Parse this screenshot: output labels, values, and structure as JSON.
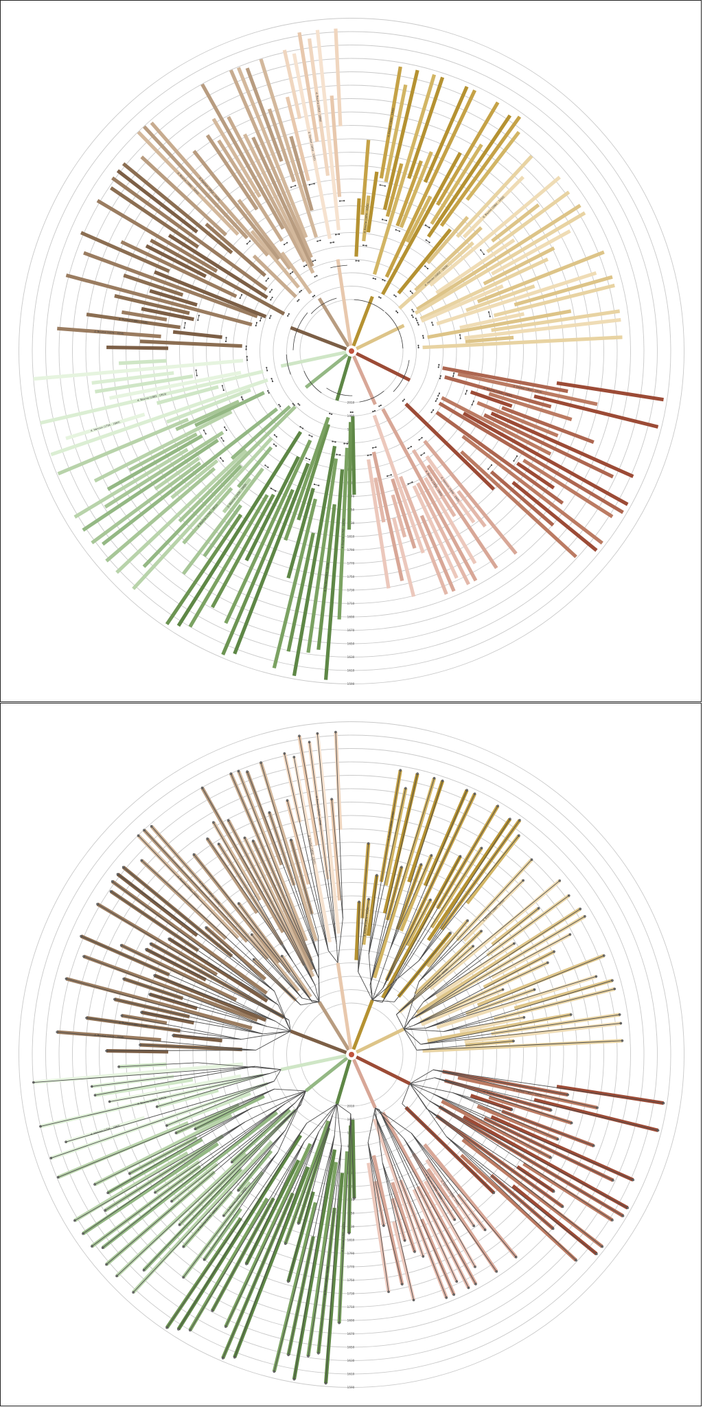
{
  "figure": {
    "panels": [
      {
        "id": "top",
        "mode": "dated-arcs"
      },
      {
        "id": "bottom",
        "mode": "tree-links"
      }
    ],
    "year_ticks": [
      "2010",
      "1990",
      "1970",
      "1950",
      "1930",
      "1910",
      "1890",
      "1870",
      "1850",
      "1830",
      "1810",
      "1790",
      "1770",
      "1750",
      "1730",
      "1710",
      "1690",
      "1670",
      "1650",
      "1630",
      "1610",
      "1590",
      "1570",
      "1550",
      "1530",
      "1510",
      "1490"
    ]
  },
  "palette": {
    "clades": [
      {
        "id": "gold",
        "colors": [
          "#b59232",
          "#c5a247",
          "#d2b564"
        ]
      },
      {
        "id": "cream",
        "colors": [
          "#ddc488",
          "#e8d3a2",
          "#efdcb5"
        ]
      },
      {
        "id": "rust",
        "colors": [
          "#9c4b36",
          "#ad6650",
          "#bb7b63"
        ]
      },
      {
        "id": "pink",
        "colors": [
          "#d8a797",
          "#e3b8aa",
          "#ecc8bc"
        ]
      },
      {
        "id": "darkgreen",
        "colors": [
          "#5e8746",
          "#6c9452",
          "#7ba262"
        ]
      },
      {
        "id": "sage",
        "colors": [
          "#94b884",
          "#a7c697",
          "#b8d3aa"
        ]
      },
      {
        "id": "mint",
        "colors": [
          "#cfe6c6",
          "#dbeed3",
          "#e6f4df"
        ]
      },
      {
        "id": "brown",
        "colors": [
          "#7c5f46",
          "#8b6e52",
          "#9a7c60"
        ]
      },
      {
        "id": "tan",
        "colors": [
          "#b89c80",
          "#c7ab8f",
          "#d3b89c"
        ]
      },
      {
        "id": "peach",
        "colors": [
          "#e8c8ad",
          "#f0d6bf",
          "#f6e2cf"
        ]
      }
    ],
    "ring": "#c8c8c8",
    "link": "#4a4a4a",
    "root": "#c0533d"
  },
  "labels": {
    "root_note": "",
    "sample_labels": [
      "d. Bourne (1874 - 1950)",
      "d. Dunkel (1880 - 1940)",
      "d. Bourne (1860 - 1930)",
      "d. Hannon (1852 - 1918)",
      "d. Dunkel (1850 - 1925)",
      "d. Bourne (1910 - 1990)",
      "d. Hannon (1840 - 1905)",
      "d. Bourne (1836 - 1905)",
      "d. Bourne (1795 - 1870)",
      "d. Dunkel (1903 - 1970)",
      "d. Bourne (1830 - 1900)",
      "d. Bourne (1755 - 1811)",
      "d. Hannon (1795 - 1860)",
      "d. Bourne (1882 - 1963)"
    ]
  }
}
